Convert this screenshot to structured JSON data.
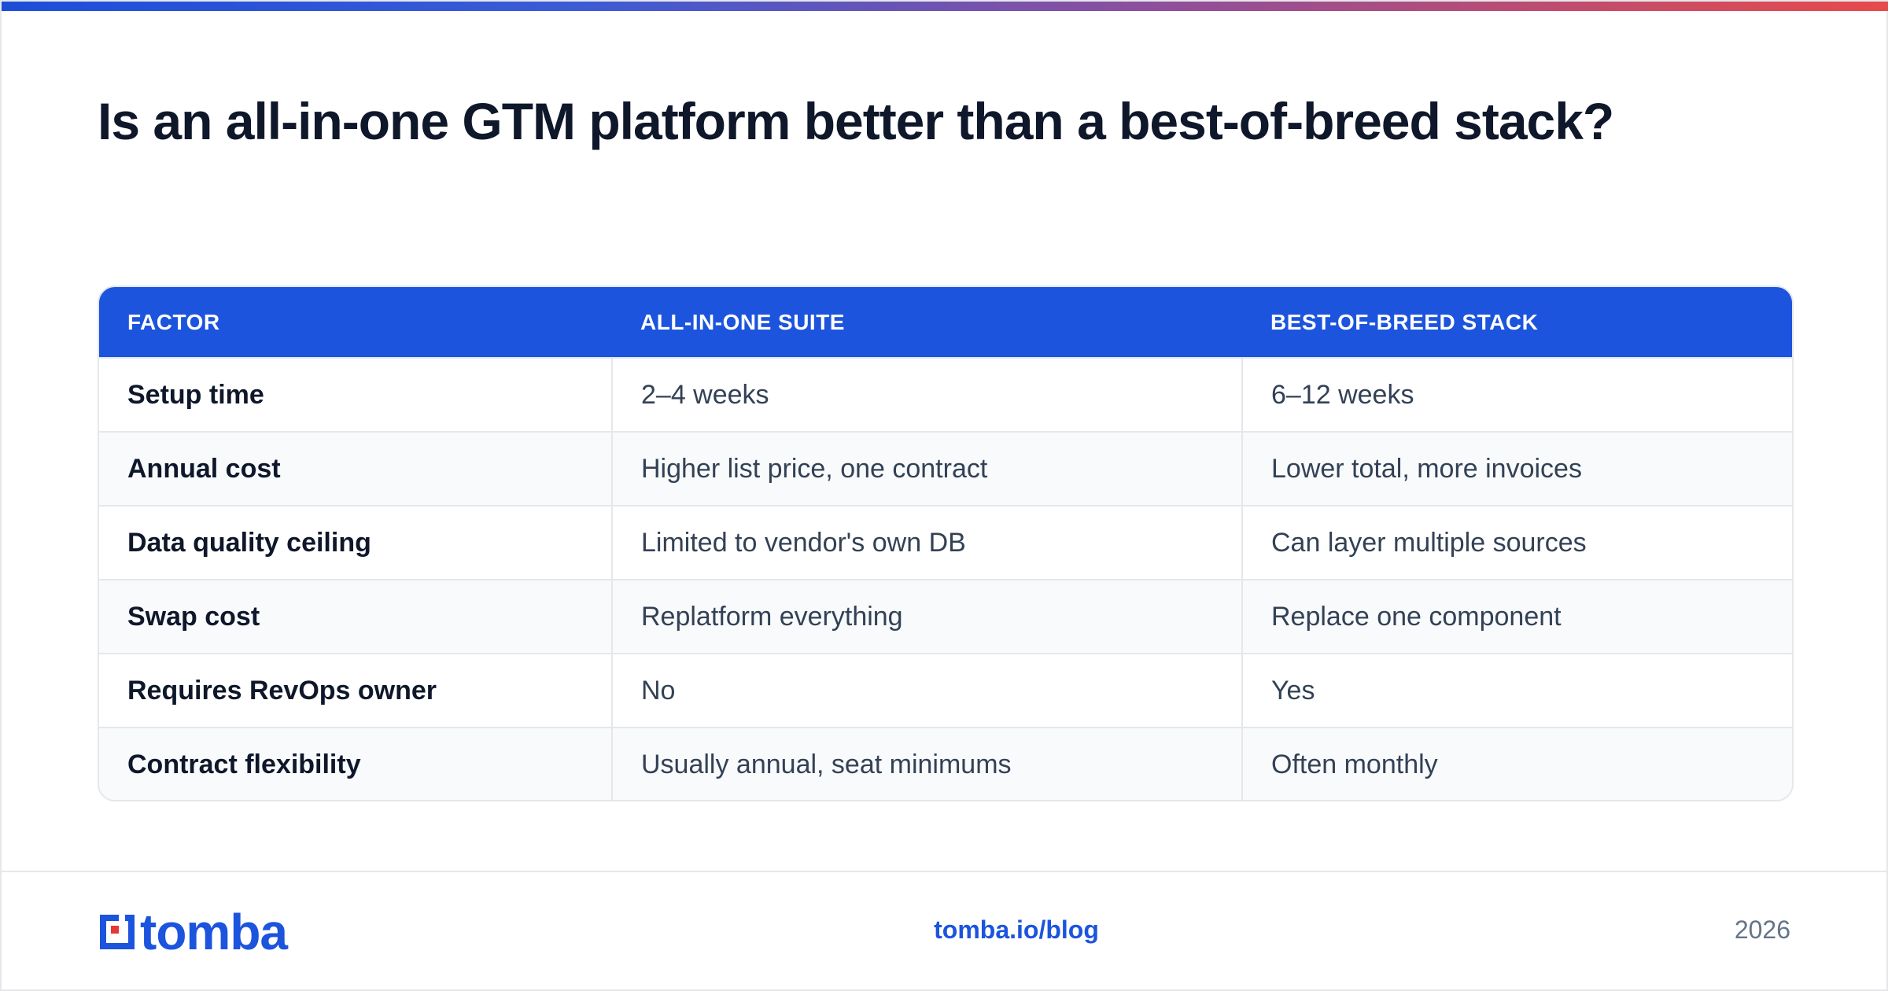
{
  "title": "Is an all-in-one GTM platform better than a best-of-breed stack?",
  "table": {
    "headers": [
      "FACTOR",
      "ALL-IN-ONE SUITE",
      "BEST-OF-BREED STACK"
    ],
    "rows": [
      [
        "Setup time",
        "2–4 weeks",
        "6–12 weeks"
      ],
      [
        "Annual cost",
        "Higher list price, one contract",
        "Lower total, more invoices"
      ],
      [
        "Data quality ceiling",
        "Limited to vendor's own DB",
        "Can layer multiple sources"
      ],
      [
        "Swap cost",
        "Replatform everything",
        "Replace one component"
      ],
      [
        "Requires RevOps owner",
        "No",
        "Yes"
      ],
      [
        "Contract flexibility",
        "Usually annual, seat minimums",
        "Often monthly"
      ]
    ]
  },
  "footer": {
    "logo_text": "tomba",
    "logo_icon": "tomba-logo-icon",
    "link": "tomba.io/blog",
    "year": "2026"
  },
  "colors": {
    "accent": "#1c54de",
    "gradient_start": "#1d4ed8",
    "gradient_end": "#e74a4a"
  }
}
